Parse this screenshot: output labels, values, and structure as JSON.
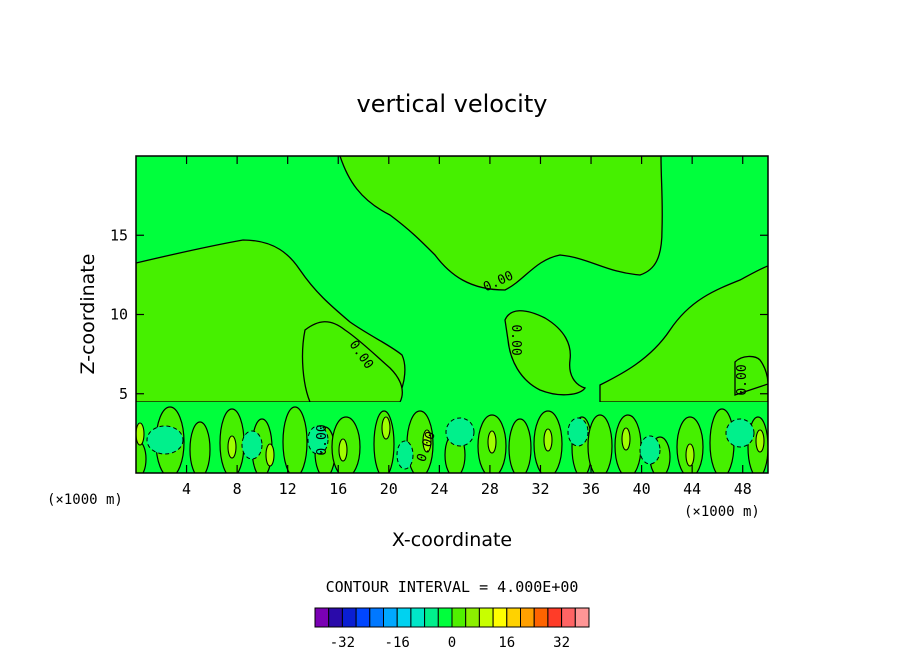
{
  "chart_data": {
    "type": "contour",
    "title": "vertical velocity",
    "xlabel": "X-coordinate",
    "ylabel": "Z-coordinate",
    "x_unit": "(×1000 m)",
    "y_unit": "(×1000 m)",
    "xlim": [
      0,
      50
    ],
    "ylim": [
      0,
      20
    ],
    "x_ticks": [
      4,
      8,
      12,
      16,
      20,
      24,
      28,
      32,
      36,
      40,
      44,
      48
    ],
    "y_ticks": [
      5,
      10,
      15
    ],
    "contour_interval_text": "CONTOUR INTERVAL = 4.000E+00",
    "contour_line_labels": [
      "0.00",
      "0.00",
      "0.00",
      "0.00",
      "0.00",
      "0.00"
    ],
    "colorbar": {
      "tick_labels": [
        "-32",
        "-16",
        "0",
        "16",
        "32"
      ],
      "tick_values": [
        -32,
        -16,
        0,
        16,
        32
      ],
      "levels": [
        -36,
        -32,
        -28,
        -24,
        -20,
        -16,
        -12,
        -8,
        -4,
        0,
        4,
        8,
        12,
        16,
        20,
        24,
        28,
        32,
        36
      ],
      "colors": [
        "#7a00b4",
        "#2a0aaa",
        "#0a1ed2",
        "#0046ff",
        "#0078ff",
        "#00a8ff",
        "#00d2f0",
        "#00e6c8",
        "#00f08c",
        "#00ff3c",
        "#50f000",
        "#8cf000",
        "#c8ff00",
        "#ffff00",
        "#ffd200",
        "#ffa000",
        "#ff6400",
        "#ff3c28",
        "#ff6464",
        "#ff9696"
      ]
    },
    "background_field_color": "#00ff3c",
    "positive_region_color": "#46f000"
  }
}
